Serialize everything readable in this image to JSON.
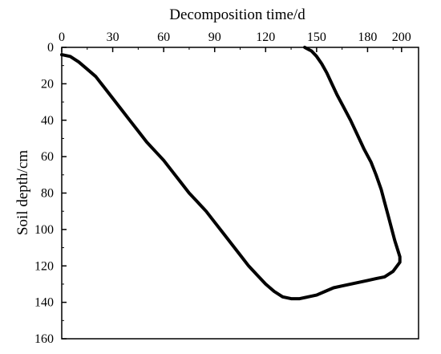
{
  "chart_data": {
    "type": "line",
    "title": "",
    "xlabel": "Decomposition time/d",
    "ylabel": "Soil depth/cm",
    "xlim": [
      0,
      210
    ],
    "ylim": [
      0,
      160
    ],
    "x_axis_position": "top",
    "y_axis_inverted": true,
    "grid": false,
    "legend": "none",
    "x_ticks": [
      0,
      30,
      60,
      90,
      120,
      150,
      180,
      200
    ],
    "y_ticks": [
      0,
      20,
      40,
      60,
      80,
      100,
      120,
      140,
      160
    ],
    "line_color": "#000000",
    "series": [
      {
        "points": [
          [
            0,
            4
          ],
          [
            5,
            5
          ],
          [
            10,
            8
          ],
          [
            15,
            12
          ],
          [
            20,
            16
          ],
          [
            25,
            22
          ],
          [
            30,
            28
          ],
          [
            35,
            34
          ],
          [
            40,
            40
          ],
          [
            45,
            46
          ],
          [
            50,
            52
          ],
          [
            55,
            57
          ],
          [
            60,
            62
          ],
          [
            65,
            68
          ],
          [
            70,
            74
          ],
          [
            75,
            80
          ],
          [
            80,
            85
          ],
          [
            85,
            90
          ],
          [
            90,
            96
          ],
          [
            95,
            102
          ],
          [
            100,
            108
          ],
          [
            105,
            114
          ],
          [
            110,
            120
          ],
          [
            115,
            125
          ],
          [
            120,
            130
          ],
          [
            125,
            134
          ],
          [
            130,
            137
          ],
          [
            135,
            138
          ],
          [
            140,
            138
          ],
          [
            145,
            137
          ],
          [
            150,
            136
          ],
          [
            155,
            134
          ],
          [
            160,
            132
          ],
          [
            165,
            131
          ],
          [
            170,
            130
          ],
          [
            175,
            129
          ],
          [
            180,
            128
          ],
          [
            185,
            127
          ],
          [
            190,
            126
          ],
          [
            195,
            123
          ],
          [
            199,
            118
          ],
          [
            199,
            115
          ],
          [
            198,
            112
          ],
          [
            196,
            106
          ],
          [
            194,
            99
          ],
          [
            192,
            92
          ],
          [
            190,
            85
          ],
          [
            188,
            78
          ],
          [
            185,
            70
          ],
          [
            182,
            63
          ],
          [
            178,
            56
          ],
          [
            174,
            48
          ],
          [
            170,
            40
          ],
          [
            166,
            33
          ],
          [
            162,
            26
          ],
          [
            159,
            20
          ],
          [
            156,
            14
          ],
          [
            153,
            9
          ],
          [
            150,
            5
          ],
          [
            147,
            2
          ],
          [
            145,
            1
          ],
          [
            143,
            0
          ]
        ]
      }
    ]
  }
}
